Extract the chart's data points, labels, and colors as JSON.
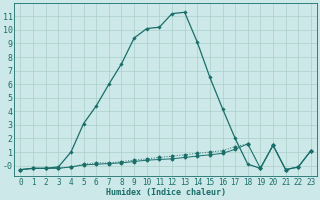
{
  "xlabel": "Humidex (Indice chaleur)",
  "background_color": "#cce8e8",
  "grid_color": "#aad0cc",
  "line_color": "#1a6e6a",
  "x": [
    0,
    1,
    2,
    3,
    4,
    5,
    6,
    7,
    8,
    9,
    10,
    11,
    12,
    13,
    14,
    15,
    16,
    17,
    18,
    19,
    20,
    21,
    22,
    23
  ],
  "y_main": [
    -0.3,
    -0.2,
    -0.2,
    -0.1,
    1.0,
    3.1,
    4.4,
    6.0,
    7.5,
    9.4,
    10.1,
    10.2,
    11.2,
    11.3,
    9.1,
    6.5,
    4.2,
    2.0,
    0.1,
    -0.2,
    1.5,
    -0.3,
    -0.1,
    1.1
  ],
  "y_line2": [
    -0.3,
    -0.2,
    -0.2,
    -0.2,
    -0.1,
    0.1,
    0.2,
    0.2,
    0.3,
    0.4,
    0.5,
    0.6,
    0.7,
    0.8,
    0.9,
    1.0,
    1.1,
    1.4,
    1.6,
    -0.2,
    1.5,
    -0.3,
    -0.1,
    1.1
  ],
  "y_line3": [
    -0.3,
    -0.2,
    -0.2,
    -0.2,
    -0.1,
    0.05,
    0.1,
    0.15,
    0.2,
    0.3,
    0.4,
    0.45,
    0.5,
    0.6,
    0.7,
    0.8,
    0.9,
    1.2,
    1.6,
    -0.2,
    1.5,
    -0.3,
    -0.1,
    1.1
  ],
  "xlim": [
    -0.5,
    23.5
  ],
  "ylim": [
    -0.8,
    12.0
  ],
  "yticks": [
    0,
    1,
    2,
    3,
    4,
    5,
    6,
    7,
    8,
    9,
    10,
    11
  ],
  "xticks": [
    0,
    1,
    2,
    3,
    4,
    5,
    6,
    7,
    8,
    9,
    10,
    11,
    12,
    13,
    14,
    15,
    16,
    17,
    18,
    19,
    20,
    21,
    22,
    23
  ],
  "xlabel_fontsize": 6.0,
  "tick_fontsize": 5.5
}
